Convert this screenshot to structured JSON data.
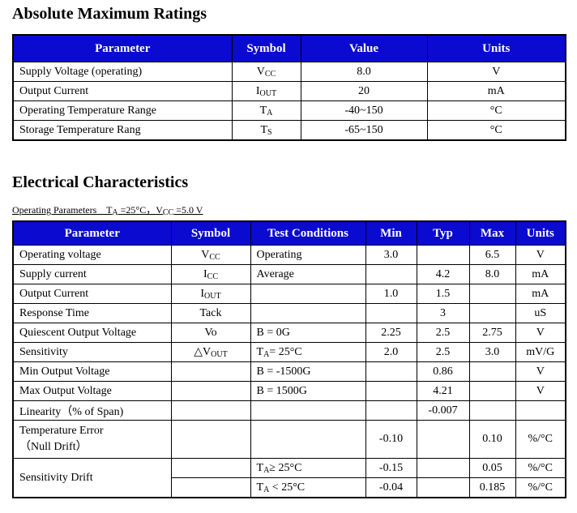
{
  "sections": [
    {
      "title": "Absolute Maximum Ratings",
      "table": {
        "header": [
          "Parameter",
          "Symbol",
          "Value",
          "Units"
        ],
        "rows": [
          [
            "Supply Voltage (operating)",
            [
              "V",
              {
                "sub": "CC"
              }
            ],
            "8.0",
            "V"
          ],
          [
            "Output Current",
            [
              "I",
              {
                "sub": "OUT"
              }
            ],
            "20",
            "mA"
          ],
          [
            "Operating Temperature Range",
            [
              "T",
              {
                "sub": "A"
              }
            ],
            "-40~150",
            "°C"
          ],
          [
            "Storage Temperature Rang",
            [
              "T",
              {
                "sub": "S"
              }
            ],
            "-65~150",
            "°C"
          ]
        ]
      }
    },
    {
      "title": "Electrical Characteristics",
      "subtitle": [
        "Operating Parameters    T",
        {
          "sub": "A"
        },
        " =25°C，V",
        {
          "sub": "CC"
        },
        " =5.0 V"
      ],
      "table": {
        "header": [
          "Parameter",
          "Symbol",
          "Test Conditions",
          "Min",
          "Typ",
          "Max",
          "Units"
        ],
        "rows": [
          [
            "Operating voltage",
            [
              "V",
              {
                "sub": "CC"
              }
            ],
            "Operating",
            "3.0",
            null,
            "6.5",
            "V"
          ],
          [
            "Supply current",
            [
              "I",
              {
                "sub": "CC"
              }
            ],
            "Average",
            null,
            "4.2",
            "8.0",
            "mA"
          ],
          [
            "Output Current",
            [
              "I",
              {
                "sub": "OUT"
              }
            ],
            null,
            "1.0",
            "1.5",
            null,
            "mA"
          ],
          [
            "Response Time",
            "Tack",
            null,
            null,
            "3",
            null,
            "uS"
          ],
          [
            "Quiescent Output Voltage",
            "Vo",
            "B = 0G",
            "2.25",
            "2.5",
            "2.75",
            "V"
          ],
          [
            "Sensitivity",
            [
              "△V",
              {
                "sub": "OUT"
              }
            ],
            [
              "T",
              {
                "sub": "A"
              },
              "= 25°C"
            ],
            "2.0",
            "2.5",
            "3.0",
            "mV/G"
          ],
          [
            "Min Output Voltage",
            null,
            "B = -1500G",
            null,
            "0.86",
            null,
            "V"
          ],
          [
            "Max Output Voltage",
            null,
            "B = 1500G",
            null,
            "4.21",
            null,
            "V"
          ],
          [
            "Linearity（% of Span)",
            null,
            null,
            null,
            "-0.007",
            null,
            null
          ],
          [
            "Temperature Error\n（Null Drift）",
            null,
            null,
            "-0.10",
            null,
            "0.10",
            "%/°C"
          ],
          [
            "Sensitivity Drift",
            null,
            [
              "T",
              {
                "sub": "A"
              },
              "≥ 25°C"
            ],
            "-0.15",
            null,
            "0.05",
            "%/°C"
          ],
          [
            null,
            null,
            [
              "T",
              {
                "sub": "A"
              },
              " < 25°C"
            ],
            "-0.04",
            null,
            "0.185",
            "%/°C"
          ]
        ]
      }
    }
  ]
}
